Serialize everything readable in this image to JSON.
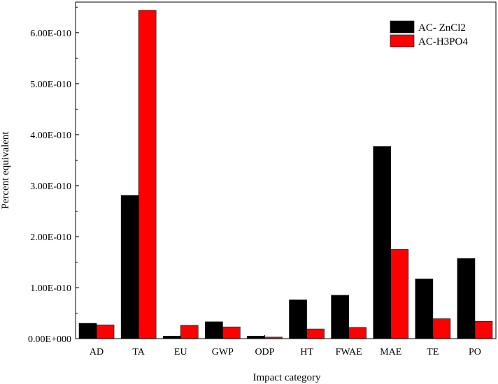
{
  "chart_data": {
    "type": "bar",
    "title": "",
    "xlabel": "Impact category",
    "ylabel": "Percent equivalent",
    "categories": [
      "AD",
      "TA",
      "EU",
      "GWP",
      "ODP",
      "HT",
      "FWAE",
      "MAE",
      "TE",
      "PO"
    ],
    "series": [
      {
        "name": "AC- ZnCl2",
        "color": "#000000",
        "values": [
          3e-11,
          2.81e-10,
          5e-12,
          3.3e-11,
          5e-12,
          7.6e-11,
          8.5e-11,
          3.77e-10,
          1.17e-10,
          1.57e-10
        ]
      },
      {
        "name": "AC-H3PO4",
        "color": "#ff0000",
        "values": [
          2.7e-11,
          6.44e-10,
          2.6e-11,
          2.3e-11,
          3e-12,
          1.9e-11,
          2.2e-11,
          1.75e-10,
          3.9e-11,
          3.4e-11
        ]
      }
    ],
    "ylim": [
      0,
      6.6e-10
    ],
    "yticks": [
      0,
      1e-10,
      2e-10,
      3e-10,
      4e-10,
      5e-10,
      6e-10
    ],
    "ytick_labels": [
      "0.00E+000",
      "1.00E-010",
      "2.00E-010",
      "3.00E-010",
      "4.00E-010",
      "5.00E-010",
      "6.00E-010"
    ],
    "grid": false,
    "legend_position": "top-right"
  }
}
